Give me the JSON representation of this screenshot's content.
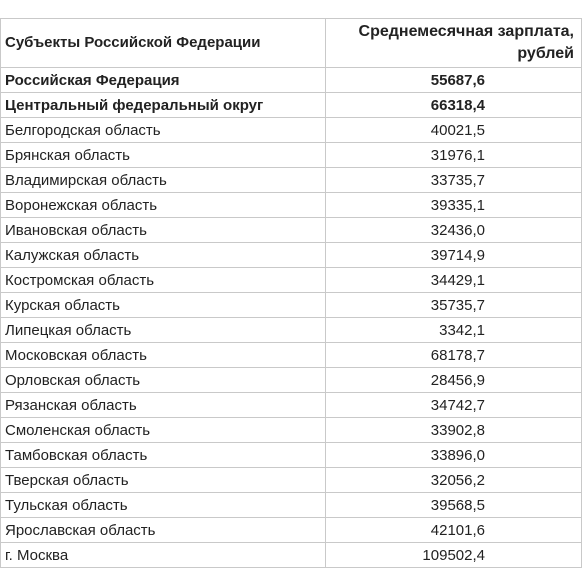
{
  "table": {
    "headers": [
      "Субъекты Российской Федерации",
      "Среднемесячная зарплата, рублей"
    ],
    "rows": [
      {
        "name": "Российская Федерация",
        "value": "55687,6",
        "bold": true
      },
      {
        "name": "Центральный федеральный округ",
        "value": "66318,4",
        "bold": true
      },
      {
        "name": "Белгородская область",
        "value": "40021,5"
      },
      {
        "name": "Брянская область",
        "value": "31976,1"
      },
      {
        "name": "Владимирская область",
        "value": "33735,7"
      },
      {
        "name": "Воронежская область",
        "value": "39335,1"
      },
      {
        "name": "Ивановская область",
        "value": "32436,0"
      },
      {
        "name": "Калужская область",
        "value": "39714,9"
      },
      {
        "name": "Костромская область",
        "value": "34429,1"
      },
      {
        "name": "Курская область",
        "value": "35735,7"
      },
      {
        "name": "Липецкая область",
        "value": "3342,1"
      },
      {
        "name": "Московская область",
        "value": "68178,7"
      },
      {
        "name": "Орловская область",
        "value": "28456,9"
      },
      {
        "name": "Рязанская область",
        "value": "34742,7"
      },
      {
        "name": "Смоленская область",
        "value": "33902,8"
      },
      {
        "name": "Тамбовская область",
        "value": "33896,0"
      },
      {
        "name": "Тверская область",
        "value": "32056,2"
      },
      {
        "name": "Тульская область",
        "value": "39568,5"
      },
      {
        "name": "Ярославская область",
        "value": "42101,6"
      },
      {
        "name": "г. Москва",
        "value": "109502,4"
      }
    ]
  }
}
